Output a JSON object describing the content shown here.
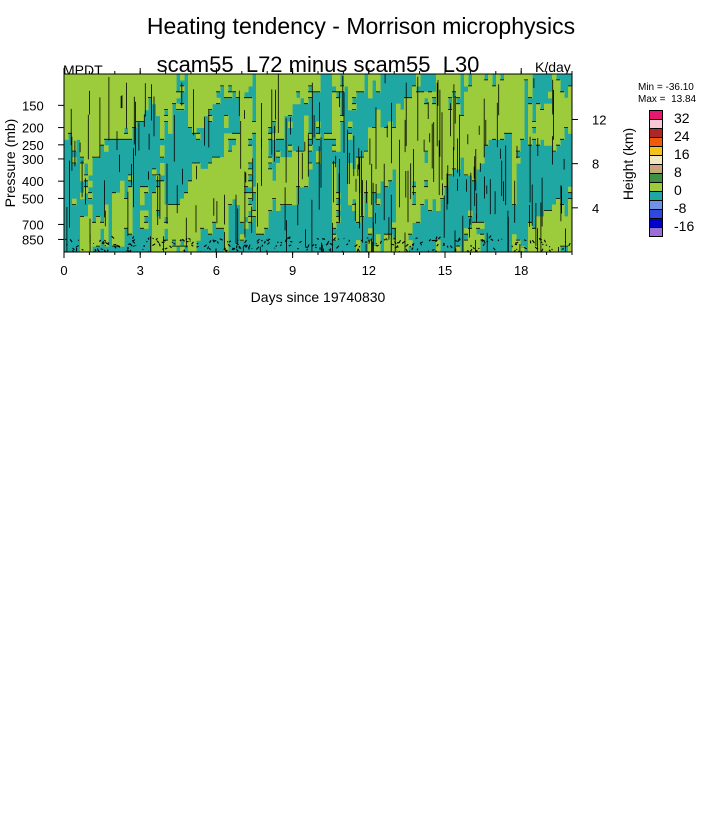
{
  "figure": {
    "title": "Heating tendency - Morrison microphysics",
    "subtitle": "scam55_L72 minus scam55_L30",
    "variable": "MPDT",
    "units": "K/day",
    "min_text": "Min = -36.10",
    "max_text": "Max =  13.84"
  },
  "chart_data": {
    "type": "heatmap",
    "title": "Heating tendency - Morrison microphysics",
    "subtitle": "scam55_L72 minus scam55_L30",
    "xlabel": "Days since 19740830",
    "ylabel": "Pressure (mb)",
    "ylabel_right": "Height (km)",
    "x_ticks": [
      0,
      3,
      6,
      9,
      12,
      15,
      18
    ],
    "xlim": [
      0,
      20
    ],
    "y_ticks": [
      150,
      200,
      250,
      300,
      400,
      500,
      700,
      850
    ],
    "ylim": [
      1000,
      100
    ],
    "y_scale": "log",
    "y_right_ticks": [
      4,
      8,
      12
    ],
    "colorbar": {
      "levels": [
        "32",
        "24",
        "16",
        "8",
        "0",
        "-8",
        "-16"
      ],
      "colors": [
        "#e8186e",
        "#f7c9d4",
        "#b02525",
        "#f05a0a",
        "#f2c31e",
        "#f2e6c0",
        "#c9a57a",
        "#3e9140",
        "#9ccb3c",
        "#1fa7a4",
        "#7092e6",
        "#2f4ad8",
        "#0000c8",
        "#9a6fd6"
      ]
    },
    "dominant_values": {
      "teal_band": "0 to -4 K/day",
      "green_band": "0 to 4 K/day"
    },
    "stats": {
      "min": -36.1,
      "max": 13.84
    },
    "grid": false,
    "legend_position": "right"
  }
}
